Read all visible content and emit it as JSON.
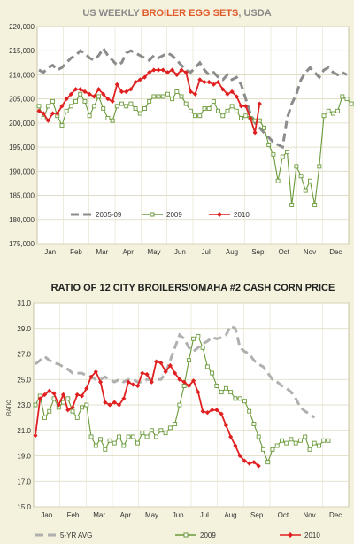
{
  "chart_data": [
    {
      "type": "line",
      "title_parts": [
        "US WEEKLY ",
        "BROILER EGG SETS",
        ", USDA"
      ],
      "title_colors": [
        "#888888",
        "#e05a2a",
        "#888888"
      ],
      "xlabel": "",
      "ylabel": "",
      "ylim": [
        175000,
        220000
      ],
      "yticks": [
        175000,
        180000,
        185000,
        190000,
        195000,
        200000,
        205000,
        210000,
        215000,
        220000
      ],
      "ytick_labels": [
        "175,000",
        "180,000",
        "185,000",
        "190,000",
        "195,000",
        "200,000",
        "205,000",
        "210,000",
        "215,000",
        "220,000"
      ],
      "months": [
        "Jan",
        "Feb",
        "Mar",
        "Apr",
        "May",
        "Jun",
        "Jul",
        "Aug",
        "Sep",
        "Oct",
        "Nov",
        "Dec"
      ],
      "grid": true,
      "legend_position": "bottom-inside",
      "series": [
        {
          "name": "2005-09",
          "color": "#8c8c8c",
          "style": "dashed",
          "values": [
            211000,
            210500,
            211500,
            212000,
            211000,
            211500,
            212500,
            213500,
            214000,
            215000,
            214500,
            213500,
            213000,
            214000,
            215500,
            214000,
            213000,
            212000,
            212500,
            214500,
            215000,
            214500,
            214000,
            213500,
            213000,
            214000,
            213500,
            214000,
            214500,
            214000,
            213000,
            212000,
            211000,
            210500,
            211500,
            212500,
            211000,
            210000,
            210500,
            209500,
            209000,
            210000,
            209000,
            209500,
            208000,
            205000,
            202000,
            200000,
            199000,
            198000,
            197000,
            196000,
            195500,
            195000,
            201000,
            204000,
            206000,
            209000,
            210500,
            211500,
            210500,
            209500,
            211000,
            211500,
            210500,
            210000,
            210500,
            210000
          ]
        },
        {
          "name": "2009",
          "color": "#6a9a3a",
          "style": "open-square",
          "values": [
            203500,
            201000,
            203500,
            204500,
            201500,
            199500,
            202500,
            203500,
            204500,
            206000,
            204500,
            201500,
            203500,
            205500,
            203000,
            201000,
            200500,
            203500,
            204000,
            203500,
            204000,
            203000,
            202000,
            203000,
            204500,
            205500,
            205500,
            205500,
            206000,
            205000,
            206500,
            205500,
            204000,
            202500,
            201500,
            201500,
            203000,
            203000,
            204500,
            202500,
            201500,
            202500,
            203500,
            202500,
            201000,
            201500,
            201000,
            200500,
            200500,
            199000,
            195500,
            193500,
            188000,
            193000,
            194000,
            183000,
            191000,
            189000,
            186000,
            188000,
            183000,
            191000,
            201500,
            202500,
            202000,
            202500,
            205500,
            205000,
            204000
          ]
        },
        {
          "name": "2010",
          "color": "#e02020",
          "style": "filled-diamond",
          "values": [
            202500,
            202000,
            200500,
            202000,
            202000,
            203500,
            205000,
            206000,
            207000,
            207000,
            206500,
            206000,
            205500,
            207000,
            206000,
            205000,
            204500,
            208000,
            206500,
            206500,
            207000,
            208500,
            209000,
            209500,
            210500,
            211000,
            211000,
            211000,
            210500,
            211000,
            210000,
            211000,
            210500,
            206500,
            206000,
            209000,
            208500,
            208500,
            208000,
            208500,
            207000,
            206000,
            206500,
            205500,
            203500,
            203500,
            201000,
            198000,
            204000
          ]
        }
      ]
    },
    {
      "type": "line",
      "title": "RATIO OF 12 CITY BROILERS/OMAHA #2 CASH CORN PRICE",
      "xlabel": "",
      "ylabel": "RATIO",
      "ylim": [
        15.0,
        31.0
      ],
      "yticks": [
        15.0,
        17.0,
        19.0,
        21.0,
        23.0,
        25.0,
        27.0,
        29.0,
        31.0
      ],
      "ytick_labels": [
        "15.0",
        "17.0",
        "19.0",
        "21.0",
        "23.0",
        "25.0",
        "27.0",
        "29.0",
        "31.0"
      ],
      "months": [
        "Jan",
        "Feb",
        "Mar",
        "Apr",
        "May",
        "Jun",
        "Jul",
        "Aug",
        "Sep",
        "Oct",
        "Nov",
        "Dec"
      ],
      "grid": true,
      "legend_position": "bottom-outside",
      "series": [
        {
          "name": "5-YR AVG",
          "color": "#b0b0b0",
          "style": "dashed",
          "values": [
            26.2,
            26.5,
            26.8,
            26.5,
            26.3,
            26.2,
            26.0,
            25.8,
            25.5,
            25.5,
            25.5,
            25.3,
            25.2,
            25.0,
            25.0,
            25.2,
            25.0,
            24.8,
            25.0,
            24.8,
            25.0,
            25.0,
            24.8,
            24.8,
            25.0,
            25.0,
            25.0,
            25.0,
            25.5,
            26.5,
            27.5,
            28.5,
            28.2,
            27.5,
            27.2,
            27.5,
            27.8,
            28.0,
            28.3,
            28.2,
            28.3,
            28.5,
            29.2,
            29.0,
            27.5,
            27.2,
            27.0,
            26.5,
            26.2,
            26.0,
            25.5,
            25.0,
            24.8,
            24.5,
            24.3,
            24.0,
            23.5,
            22.8,
            22.5,
            22.3,
            22.0
          ]
        },
        {
          "name": "2009",
          "color": "#6a9a3a",
          "style": "open-square",
          "values": [
            23.0,
            23.7,
            22.0,
            22.5,
            23.5,
            22.8,
            23.2,
            23.5,
            22.5,
            22.0,
            22.8,
            23.0,
            20.5,
            19.8,
            20.3,
            19.5,
            20.2,
            20.0,
            20.5,
            19.8,
            20.5,
            20.5,
            20.0,
            20.8,
            20.5,
            21.0,
            20.5,
            21.0,
            20.8,
            21.2,
            21.5,
            23.0,
            24.5,
            26.5,
            28.2,
            28.4,
            27.5,
            26.0,
            25.5,
            24.5,
            24.0,
            24.3,
            24.0,
            23.5,
            23.5,
            23.3,
            22.5,
            21.5,
            20.5,
            19.5,
            18.5,
            19.5,
            19.8,
            20.2,
            20.0,
            20.3,
            20.0,
            20.2,
            20.5,
            19.5,
            20.0,
            19.8,
            20.2,
            20.2
          ]
        },
        {
          "name": "2010",
          "color": "#e02020",
          "style": "filled-diamond",
          "values": [
            20.6,
            23.5,
            23.8,
            24.1,
            23.9,
            23.0,
            23.8,
            22.6,
            22.8,
            23.8,
            23.7,
            24.3,
            25.2,
            25.6,
            24.8,
            23.2,
            23.0,
            23.2,
            23.0,
            23.5,
            24.8,
            24.6,
            24.5,
            25.5,
            25.4,
            24.8,
            26.4,
            26.3,
            25.6,
            26.1,
            25.5,
            25.0,
            24.8,
            24.5,
            24.9,
            24.0,
            22.5,
            22.4,
            22.6,
            22.6,
            22.3,
            21.4,
            20.5,
            19.8,
            19.0,
            18.6,
            18.4,
            18.5,
            18.2
          ]
        }
      ]
    }
  ]
}
